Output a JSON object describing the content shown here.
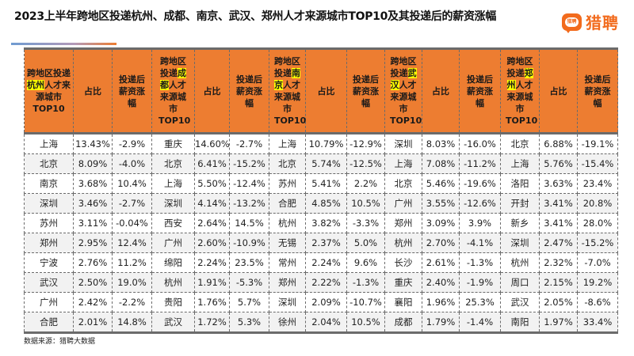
{
  "header": {
    "title": "2023上半年跨地区投递杭州、成都、南京、武汉、郑州人才来源城市TOP10及其投递后的薪资涨幅",
    "logo": {
      "icon": "liepin-chat-bubble-icon",
      "badge_text": "猎聘",
      "text": "猎聘",
      "color": "#f26b1d"
    }
  },
  "table": {
    "header_bg": "#ed7d31",
    "highlight_color": "#ffff00",
    "groups": [
      {
        "city": "杭州",
        "col_header_pre": "跨地区投递",
        "col_header_post": "人才来源城市TOP10",
        "share_label": "占比",
        "growth_label": "投递后薪资涨幅",
        "rows": [
          {
            "source": "上海",
            "share": "13.43%",
            "growth": "-2.9%"
          },
          {
            "source": "北京",
            "share": "8.09%",
            "growth": "-4.0%"
          },
          {
            "source": "南京",
            "share": "3.68%",
            "growth": "10.4%"
          },
          {
            "source": "深圳",
            "share": "3.46%",
            "growth": "-2.7%"
          },
          {
            "source": "苏州",
            "share": "3.11%",
            "growth": "-0.04%"
          },
          {
            "source": "郑州",
            "share": "2.95%",
            "growth": "12.4%"
          },
          {
            "source": "宁波",
            "share": "2.76%",
            "growth": "11.2%"
          },
          {
            "source": "武汉",
            "share": "2.50%",
            "growth": "19.0%"
          },
          {
            "source": "广州",
            "share": "2.42%",
            "growth": "-2.2%"
          },
          {
            "source": "合肥",
            "share": "2.01%",
            "growth": "14.8%"
          }
        ]
      },
      {
        "city": "成都",
        "col_header_pre": "跨地区投递",
        "col_header_post": "人才来源城市TOP10",
        "share_label": "占比",
        "growth_label": "投递后薪资涨幅",
        "rows": [
          {
            "source": "重庆",
            "share": "14.60%",
            "growth": "-2.7%"
          },
          {
            "source": "北京",
            "share": "6.41%",
            "growth": "-15.2%"
          },
          {
            "source": "上海",
            "share": "5.50%",
            "growth": "-12.4%"
          },
          {
            "source": "深圳",
            "share": "4.14%",
            "growth": "-13.2%"
          },
          {
            "source": "西安",
            "share": "2.64%",
            "growth": "14.5%"
          },
          {
            "source": "广州",
            "share": "2.60%",
            "growth": "-10.9%"
          },
          {
            "source": "绵阳",
            "share": "2.24%",
            "growth": "23.5%"
          },
          {
            "source": "杭州",
            "share": "1.91%",
            "growth": "-5.3%"
          },
          {
            "source": "贵阳",
            "share": "1.76%",
            "growth": "5.7%"
          },
          {
            "source": "武汉",
            "share": "1.72%",
            "growth": "5.3%"
          }
        ]
      },
      {
        "city": "南京",
        "col_header_pre": "跨地区投递",
        "col_header_post": "人才来源城市TOP10",
        "share_label": "占比",
        "growth_label": "投递后薪资涨幅",
        "rows": [
          {
            "source": "上海",
            "share": "10.79%",
            "growth": "-12.9%"
          },
          {
            "source": "北京",
            "share": "5.74%",
            "growth": "-12.5%"
          },
          {
            "source": "苏州",
            "share": "5.41%",
            "growth": "2.2%"
          },
          {
            "source": "合肥",
            "share": "4.85%",
            "growth": "10.5%"
          },
          {
            "source": "杭州",
            "share": "3.82%",
            "growth": "-3.3%"
          },
          {
            "source": "无锡",
            "share": "2.37%",
            "growth": "5.0%"
          },
          {
            "source": "常州",
            "share": "2.24%",
            "growth": "9.6%"
          },
          {
            "source": "郑州",
            "share": "2.22%",
            "growth": "-1.3%"
          },
          {
            "source": "深圳",
            "share": "2.09%",
            "growth": "-10.7%"
          },
          {
            "source": "徐州",
            "share": "2.04%",
            "growth": "10.5%"
          }
        ]
      },
      {
        "city": "武汉",
        "col_header_pre": "跨地区投递",
        "col_header_post": "人才来源城市TOP10",
        "share_label": "占比",
        "growth_label": "投递后薪资涨幅",
        "rows": [
          {
            "source": "深圳",
            "share": "8.03%",
            "growth": "-16.0%"
          },
          {
            "source": "上海",
            "share": "7.08%",
            "growth": "-11.2%"
          },
          {
            "source": "北京",
            "share": "5.46%",
            "growth": "-19.6%"
          },
          {
            "source": "广州",
            "share": "3.55%",
            "growth": "-12.6%"
          },
          {
            "source": "郑州",
            "share": "3.09%",
            "growth": "3.9%"
          },
          {
            "source": "杭州",
            "share": "2.70%",
            "growth": "-4.1%"
          },
          {
            "source": "长沙",
            "share": "2.61%",
            "growth": "-1.3%"
          },
          {
            "source": "重庆",
            "share": "2.40%",
            "growth": "-1.9%"
          },
          {
            "source": "襄阳",
            "share": "1.96%",
            "growth": "25.3%"
          },
          {
            "source": "成都",
            "share": "1.79%",
            "growth": "-1.4%"
          }
        ]
      },
      {
        "city": "郑州",
        "col_header_pre": "跨地区投递",
        "col_header_post": "人才来源城市TOP10",
        "share_label": "占比",
        "growth_label": "投递后薪资涨幅",
        "rows": [
          {
            "source": "北京",
            "share": "6.88%",
            "growth": "-19.1%"
          },
          {
            "source": "上海",
            "share": "5.76%",
            "growth": "-15.4%"
          },
          {
            "source": "洛阳",
            "share": "3.63%",
            "growth": "23.4%"
          },
          {
            "source": "开封",
            "share": "3.41%",
            "growth": "20.8%"
          },
          {
            "source": "新乡",
            "share": "3.41%",
            "growth": "28.0%"
          },
          {
            "source": "深圳",
            "share": "2.47%",
            "growth": "-15.2%"
          },
          {
            "source": "杭州",
            "share": "2.32%",
            "growth": "-7.0%"
          },
          {
            "source": "周口",
            "share": "2.15%",
            "growth": "19.2%"
          },
          {
            "source": "武汉",
            "share": "2.05%",
            "growth": "-8.6%"
          },
          {
            "source": "南阳",
            "share": "1.97%",
            "growth": "33.4%"
          }
        ]
      }
    ]
  },
  "footer": {
    "source": "数据来源：猎聘大数据"
  }
}
